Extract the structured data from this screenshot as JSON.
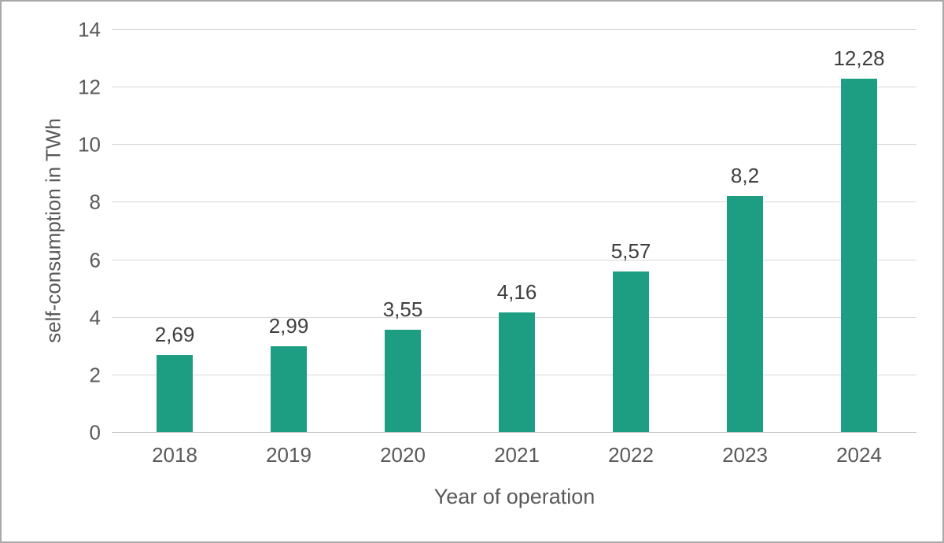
{
  "chart_data": {
    "type": "bar",
    "title": "",
    "xlabel": "Year of operation",
    "ylabel": "self-consumption in TWh",
    "categories": [
      "2018",
      "2019",
      "2020",
      "2021",
      "2022",
      "2023",
      "2024"
    ],
    "values": [
      2.69,
      2.99,
      3.55,
      4.16,
      5.57,
      8.2,
      12.28
    ],
    "value_labels": [
      "2,69",
      "2,99",
      "3,55",
      "4,16",
      "5,57",
      "8,2",
      "12,28"
    ],
    "ylim": [
      0,
      14
    ],
    "yticks": [
      0,
      2,
      4,
      6,
      8,
      10,
      12,
      14
    ],
    "grid": "horizontal",
    "legend": "none"
  },
  "colors": {
    "bar": "#1d9e83",
    "gridline": "#d9d9d9",
    "axis_line": "#c6c6c6",
    "tick_text": "#595959",
    "data_label_text": "#3f3f3f",
    "border": "#a9a9a9",
    "background": "#ffffff"
  }
}
